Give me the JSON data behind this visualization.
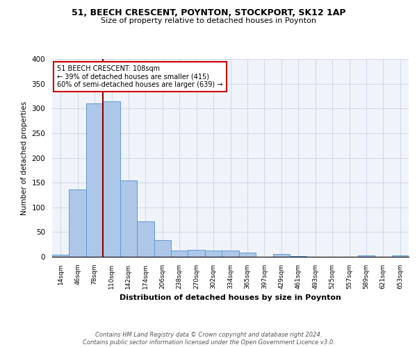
{
  "title1": "51, BEECH CRESCENT, POYNTON, STOCKPORT, SK12 1AP",
  "title2": "Size of property relative to detached houses in Poynton",
  "xlabel": "Distribution of detached houses by size in Poynton",
  "ylabel": "Number of detached properties",
  "bin_labels": [
    "14sqm",
    "46sqm",
    "78sqm",
    "110sqm",
    "142sqm",
    "174sqm",
    "206sqm",
    "238sqm",
    "270sqm",
    "302sqm",
    "334sqm",
    "365sqm",
    "397sqm",
    "429sqm",
    "461sqm",
    "493sqm",
    "525sqm",
    "557sqm",
    "589sqm",
    "621sqm",
    "653sqm"
  ],
  "bar_heights": [
    4,
    136,
    310,
    315,
    155,
    72,
    34,
    12,
    14,
    13,
    12,
    8,
    0,
    5,
    2,
    0,
    0,
    0,
    3,
    0,
    3
  ],
  "bar_color": "#aec6e8",
  "bar_edge_color": "#5b9bd5",
  "vline_x": 3,
  "vline_color": "#8b0000",
  "annotation_text": "51 BEECH CRESCENT: 108sqm\n← 39% of detached houses are smaller (415)\n60% of semi-detached houses are larger (639) →",
  "annotation_box_color": "white",
  "annotation_box_edge_color": "#cc0000",
  "grid_color": "#d0d8e8",
  "background_color": "#f0f4fa",
  "footer_text": "Contains HM Land Registry data © Crown copyright and database right 2024.\nContains public sector information licensed under the Open Government Licence v3.0.",
  "ylim": [
    0,
    400
  ],
  "yticks": [
    0,
    50,
    100,
    150,
    200,
    250,
    300,
    350,
    400
  ]
}
